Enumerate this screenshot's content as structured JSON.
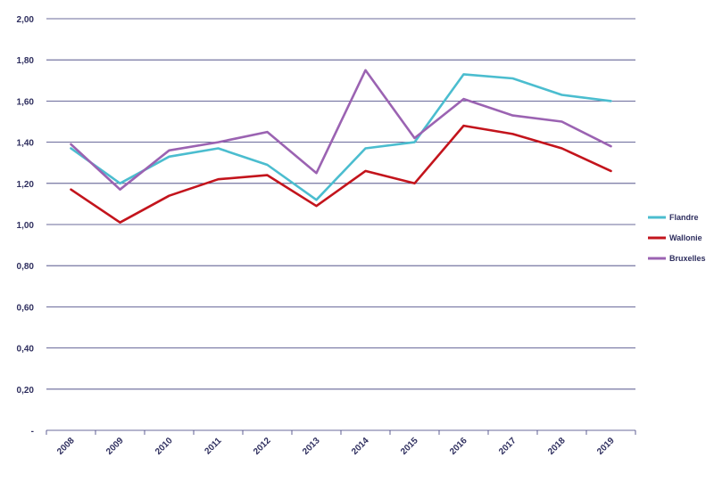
{
  "chart_data": {
    "type": "line",
    "x": [
      "2008",
      "2009",
      "2010",
      "2011",
      "2012",
      "2013",
      "2014",
      "2015",
      "2016",
      "2017",
      "2018",
      "2019"
    ],
    "ylim": [
      0,
      2
    ],
    "y_tick_labels": [
      "-",
      "0,20",
      "0,40",
      "0,60",
      "0,80",
      "1,00",
      "1,20",
      "1,40",
      "1,60",
      "1,80",
      "2,00"
    ],
    "grid": "horizontal",
    "legend_position": "right",
    "series": [
      {
        "name": "Flandre",
        "color": "#4bbdcf",
        "values": [
          1.37,
          1.2,
          1.33,
          1.37,
          1.29,
          1.12,
          1.37,
          1.4,
          1.73,
          1.71,
          1.63,
          1.6
        ]
      },
      {
        "name": "Wallonie",
        "color": "#c3141c",
        "values": [
          1.17,
          1.01,
          1.14,
          1.22,
          1.24,
          1.09,
          1.26,
          1.2,
          1.48,
          1.44,
          1.37,
          1.26
        ]
      },
      {
        "name": "Bruxelles",
        "color": "#9b63b2",
        "values": [
          1.39,
          1.17,
          1.36,
          1.4,
          1.45,
          1.25,
          1.75,
          1.42,
          1.61,
          1.53,
          1.5,
          1.38
        ]
      }
    ],
    "gridline_color": "#3a3a7a",
    "text_color": "#2f2f5f"
  }
}
